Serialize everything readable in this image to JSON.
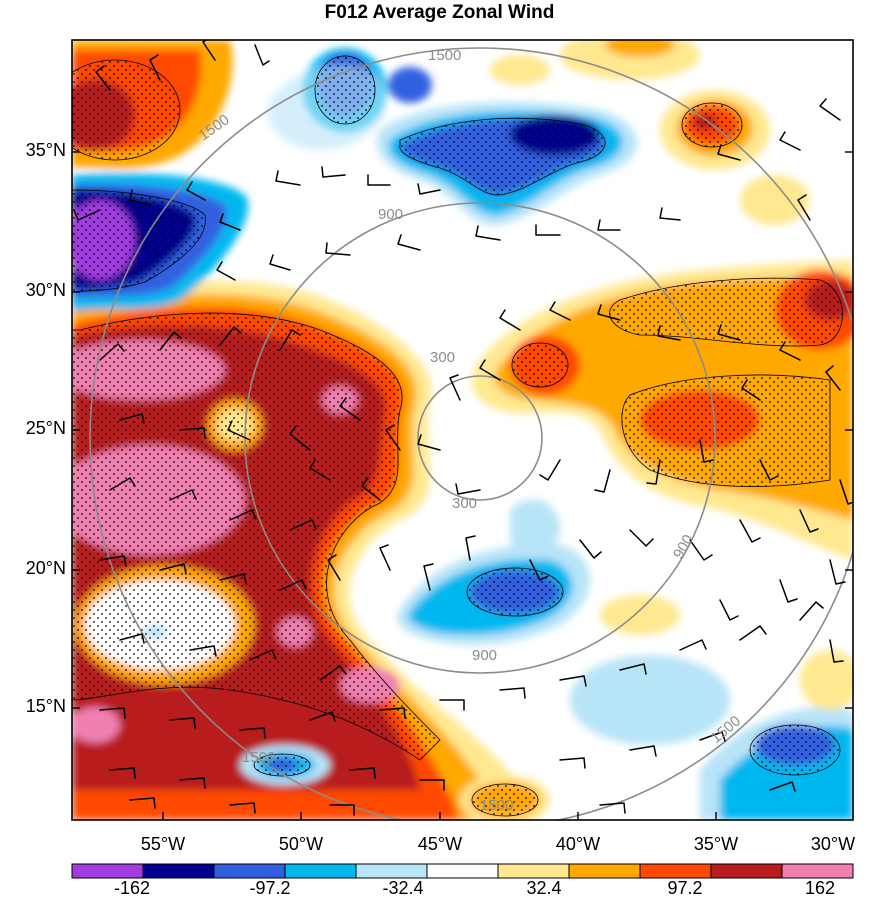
{
  "title": "F012 Average Zonal Wind",
  "latitudes": [
    "35°N",
    "30°N",
    "25°N",
    "20°N",
    "15°N"
  ],
  "longitudes": [
    "55°W",
    "50°W",
    "45°W",
    "40°W",
    "35°W",
    "30°W"
  ],
  "ring_labels": [
    "300",
    "900",
    "1500"
  ],
  "colorbar": {
    "labels": [
      "-162",
      "-97.2",
      "-32.4",
      "32.4",
      "97.2",
      "162"
    ],
    "colors": [
      "#a03ce0",
      "#000090",
      "#3060e0",
      "#00b8f0",
      "#b8e4f8",
      "#ffffff",
      "#ffe890",
      "#ffa800",
      "#ff4800",
      "#b81c1c",
      "#f080b0"
    ]
  }
}
